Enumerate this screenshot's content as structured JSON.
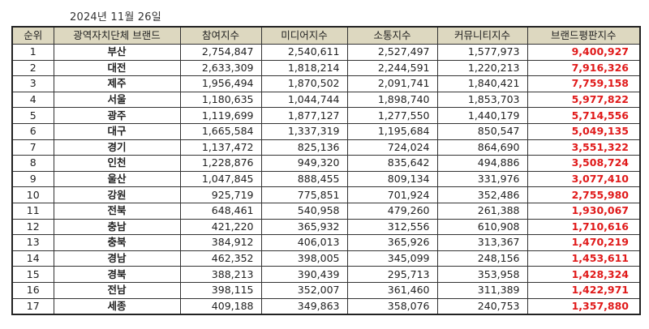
{
  "date": "2024년 11월 26일",
  "colors": {
    "header_bg": "#ddd8c0",
    "score_text": "#e01a1a",
    "border": "#333333"
  },
  "table": {
    "headers": [
      "순위",
      "광역자치단체 브랜드",
      "참여지수",
      "미디어지수",
      "소통지수",
      "커뮤니티지수",
      "브랜드평판지수"
    ],
    "rows": [
      [
        "1",
        "부산",
        "2,754,847",
        "2,540,611",
        "2,527,497",
        "1,577,973",
        "9,400,927"
      ],
      [
        "2",
        "대전",
        "2,633,309",
        "1,818,214",
        "2,244,591",
        "1,220,213",
        "7,916,326"
      ],
      [
        "3",
        "제주",
        "1,956,494",
        "1,870,502",
        "2,091,741",
        "1,840,421",
        "7,759,158"
      ],
      [
        "4",
        "서울",
        "1,180,635",
        "1,044,744",
        "1,898,740",
        "1,853,703",
        "5,977,822"
      ],
      [
        "5",
        "광주",
        "1,119,699",
        "1,877,127",
        "1,277,550",
        "1,440,179",
        "5,714,556"
      ],
      [
        "6",
        "대구",
        "1,665,584",
        "1,337,319",
        "1,195,684",
        "850,547",
        "5,049,135"
      ],
      [
        "7",
        "경기",
        "1,137,472",
        "825,136",
        "724,024",
        "864,690",
        "3,551,322"
      ],
      [
        "8",
        "인천",
        "1,228,876",
        "949,320",
        "835,642",
        "494,886",
        "3,508,724"
      ],
      [
        "9",
        "울산",
        "1,047,845",
        "888,455",
        "809,134",
        "331,976",
        "3,077,410"
      ],
      [
        "10",
        "강원",
        "925,719",
        "775,851",
        "701,924",
        "352,486",
        "2,755,980"
      ],
      [
        "11",
        "전북",
        "648,461",
        "540,958",
        "479,260",
        "261,388",
        "1,930,067"
      ],
      [
        "12",
        "충남",
        "421,220",
        "365,932",
        "312,556",
        "610,908",
        "1,710,616"
      ],
      [
        "13",
        "충북",
        "384,912",
        "406,013",
        "365,926",
        "313,367",
        "1,470,219"
      ],
      [
        "14",
        "경남",
        "462,352",
        "398,005",
        "345,099",
        "248,156",
        "1,453,611"
      ],
      [
        "15",
        "경북",
        "388,213",
        "390,439",
        "295,713",
        "353,958",
        "1,428,324"
      ],
      [
        "16",
        "전남",
        "398,115",
        "352,007",
        "361,460",
        "311,389",
        "1,422,971"
      ],
      [
        "17",
        "세종",
        "409,188",
        "349,863",
        "358,076",
        "240,753",
        "1,357,880"
      ]
    ]
  }
}
